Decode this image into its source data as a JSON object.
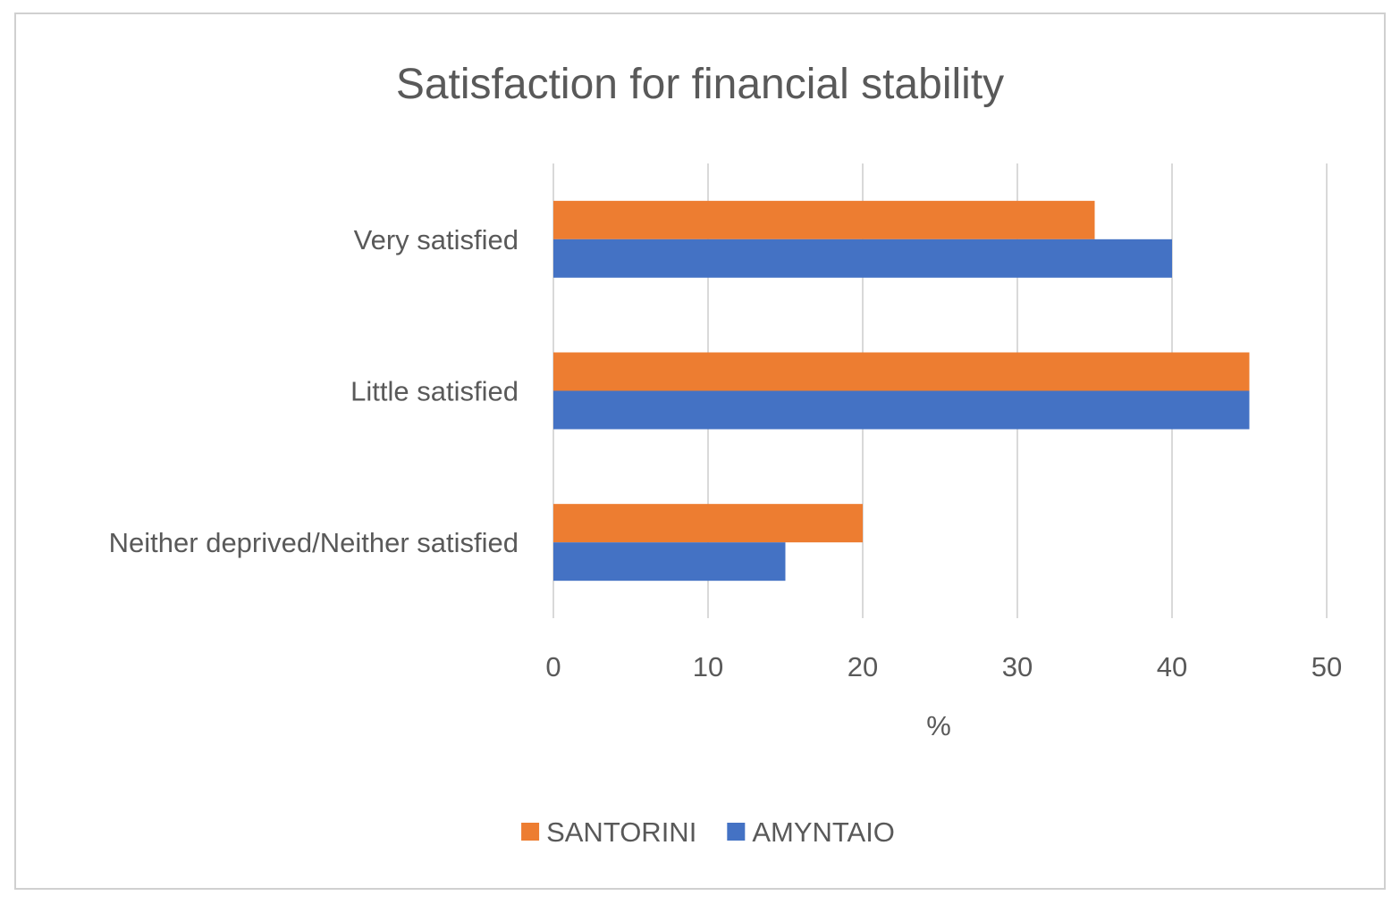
{
  "chart_data": {
    "type": "bar",
    "orientation": "horizontal",
    "title": "Satisfaction for financial stability",
    "categories": [
      "Very satisfied",
      "Little satisfied",
      "Neither deprived/Neither satisfied"
    ],
    "series": [
      {
        "name": "SANTORINI",
        "color": "#ed7d31",
        "values": [
          35,
          45,
          20
        ]
      },
      {
        "name": "AMYNTAIO",
        "color": "#4472c4",
        "values": [
          40,
          45,
          15
        ]
      }
    ],
    "xlabel": "%",
    "ylabel": "",
    "xlim": [
      0,
      50
    ],
    "xticks": [
      "0",
      "10",
      "20",
      "30",
      "40",
      "50"
    ],
    "grid": true,
    "legend_position": "bottom"
  }
}
